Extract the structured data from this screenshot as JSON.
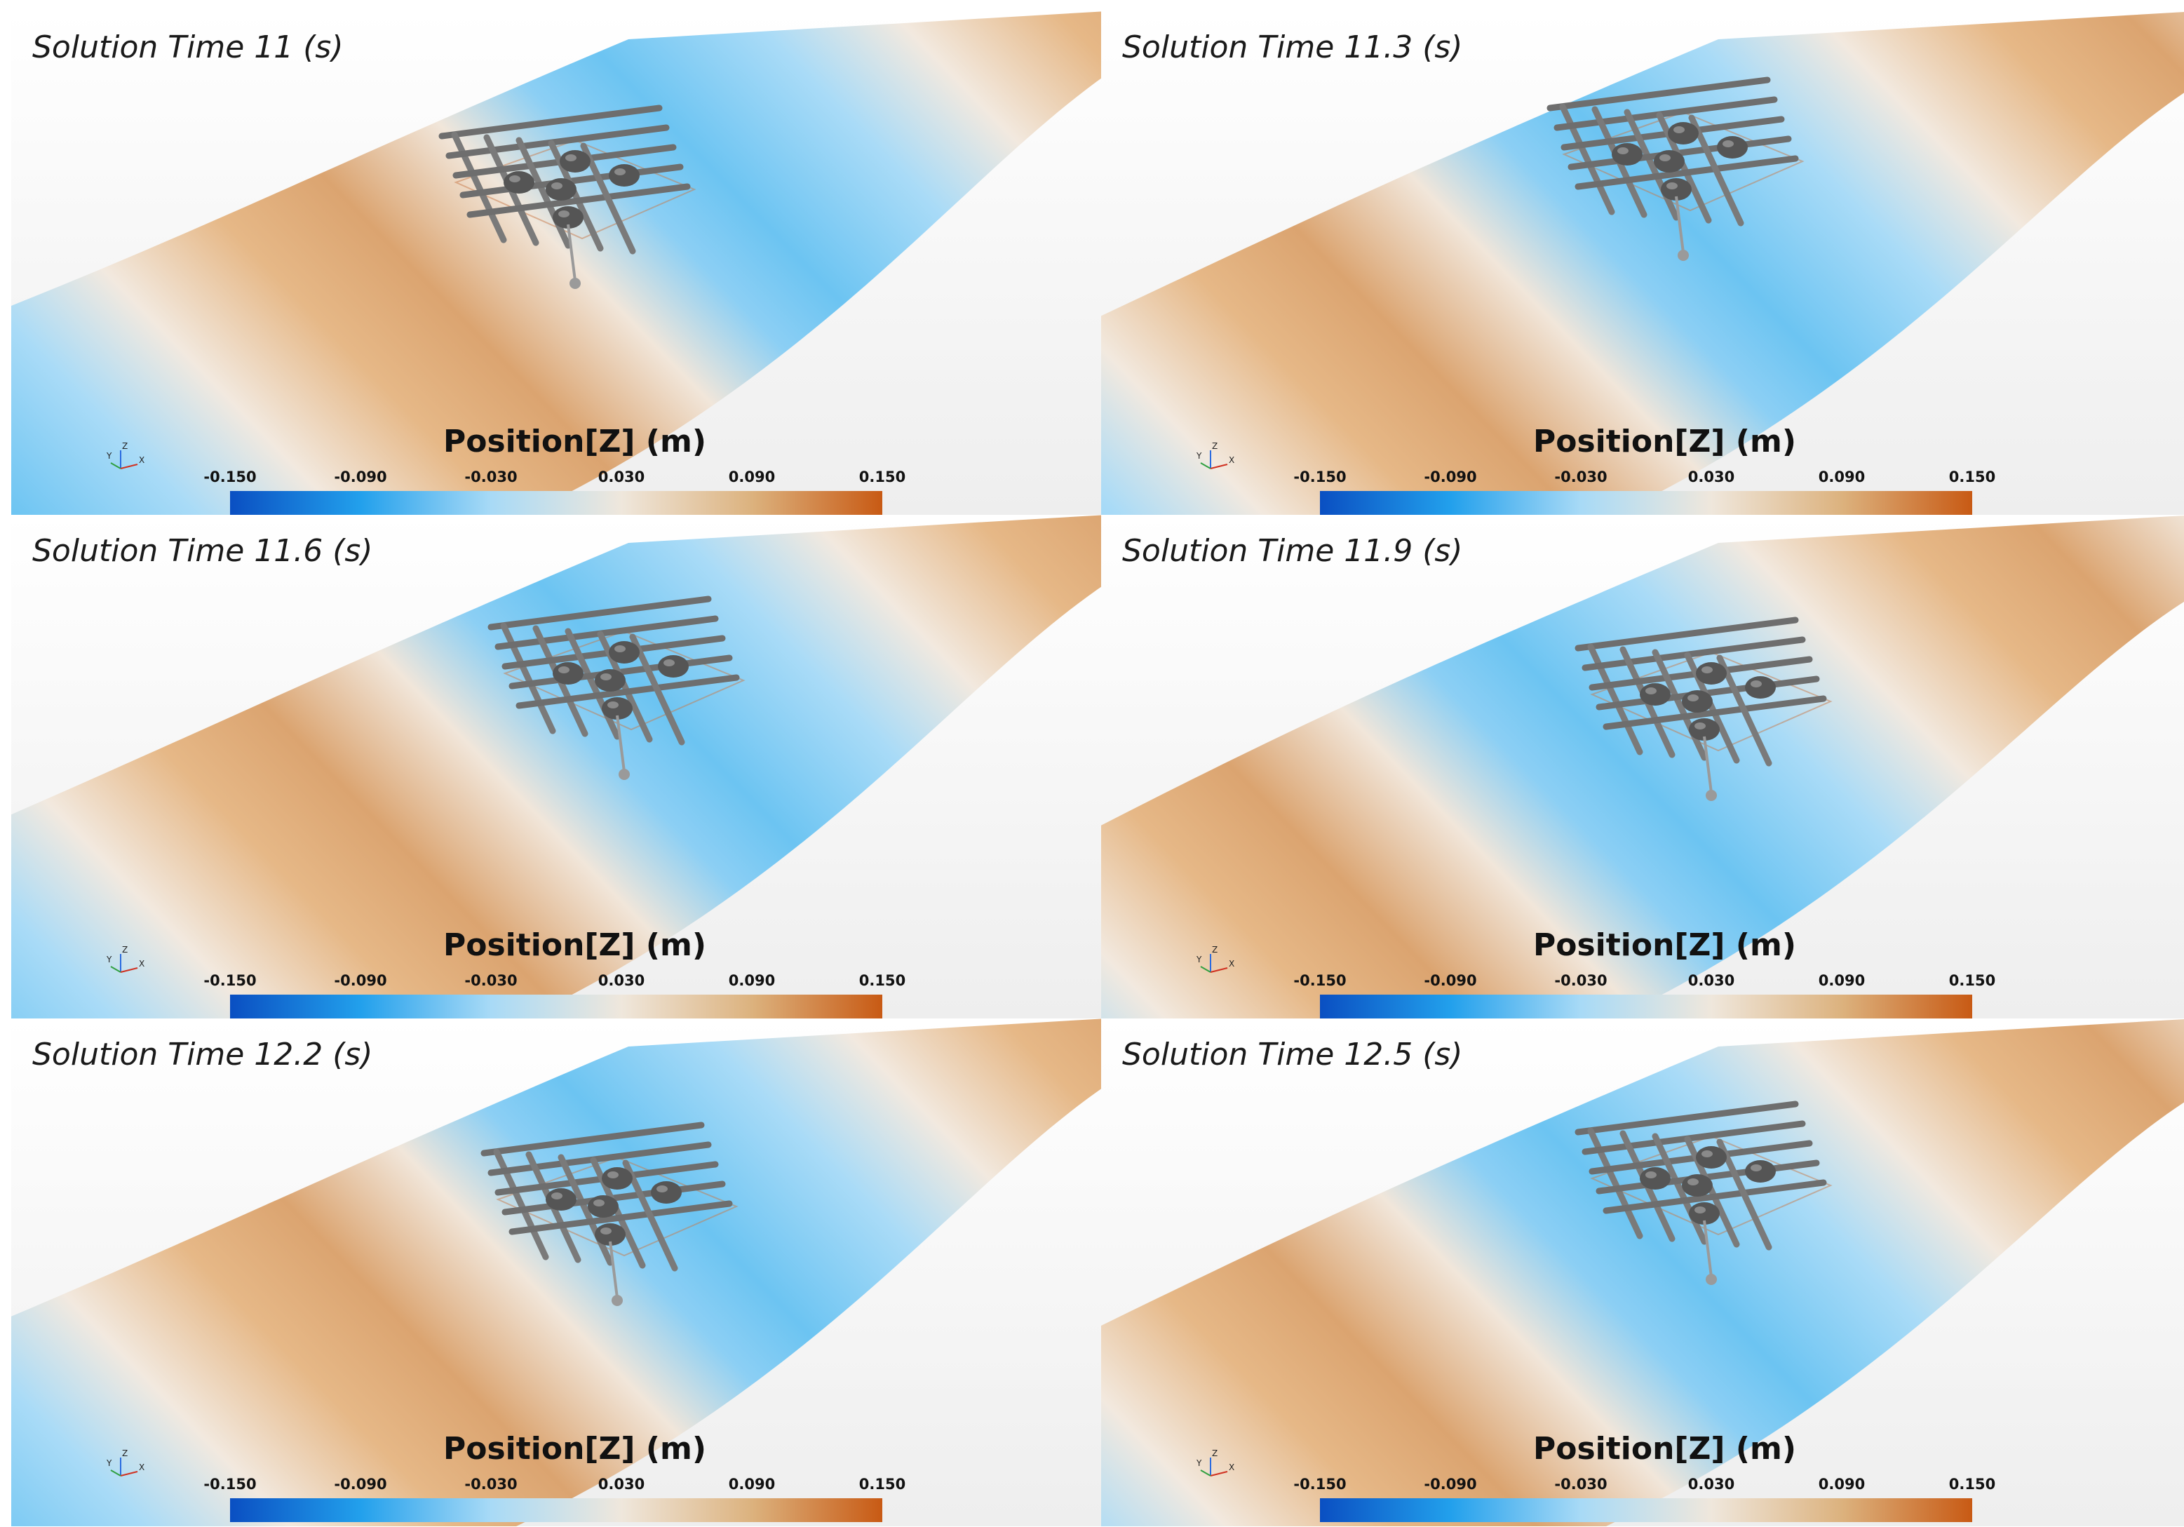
{
  "colorbar": {
    "title": "Position[Z] (m)",
    "ticks": [
      "-0.150",
      "-0.090",
      "-0.030",
      "0.030",
      "0.090",
      "0.150"
    ],
    "colors": [
      "#0a4fc2",
      "#22a0ec",
      "#a8daf6",
      "#efe7dc",
      "#dcb27e",
      "#c85a14"
    ]
  },
  "axes_labels": {
    "y": "Y",
    "z": "Z",
    "x": "X"
  },
  "panels": [
    {
      "title": "Solution Time 11 (s)"
    },
    {
      "title": "Solution Time 11.3 (s)"
    },
    {
      "title": "Solution Time 11.6 (s)"
    },
    {
      "title": "Solution Time 11.9 (s)"
    },
    {
      "title": "Solution Time 12.2 (s)"
    },
    {
      "title": "Solution Time 12.5 (s)"
    }
  ]
}
